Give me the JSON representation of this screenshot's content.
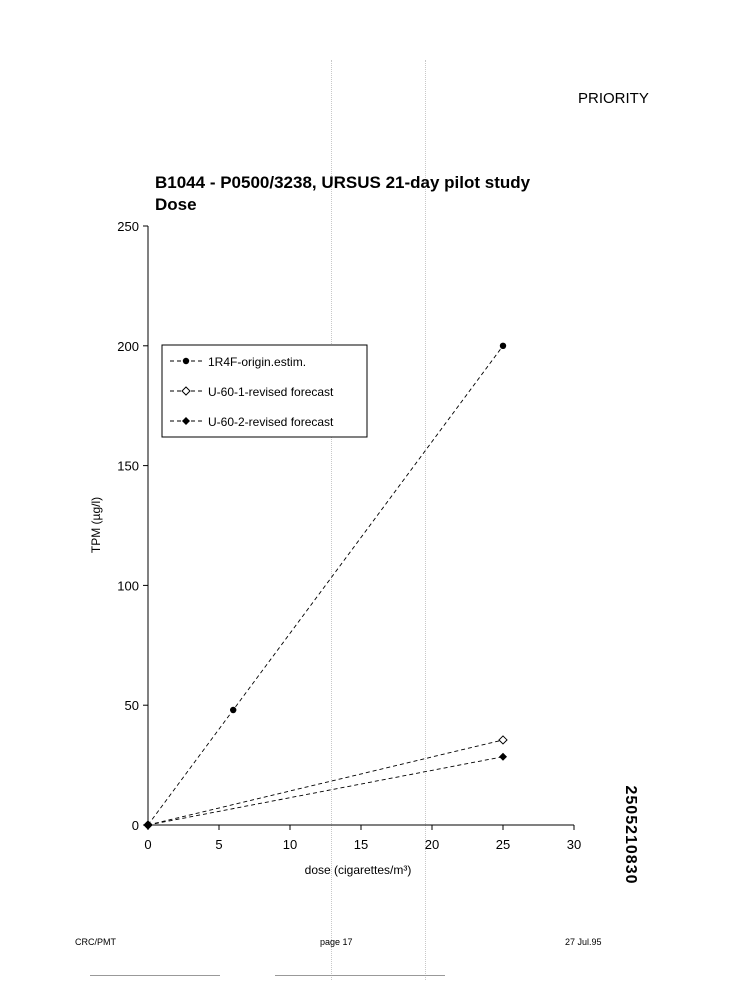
{
  "header": {
    "priority": "PRIORITY"
  },
  "footer": {
    "left": "CRC/PMT",
    "center": "page 17",
    "right": "27 Jul.95"
  },
  "side_label": "2505210830",
  "chart_data": {
    "type": "line",
    "title": "B1044 - P0500/3238, URSUS 21-day pilot study",
    "subtitle": "Dose",
    "xlabel": "dose (cigarettes/m³)",
    "ylabel": "TPM (µg/l)",
    "xlim": [
      0,
      30
    ],
    "ylim": [
      0,
      250
    ],
    "xticks": [
      0,
      5,
      10,
      15,
      20,
      25,
      30
    ],
    "yticks": [
      0,
      50,
      100,
      150,
      200,
      250
    ],
    "grid": false,
    "legend": "upper-left",
    "series": [
      {
        "name": "1R4F-origin.estim.",
        "marker": "filled-circle",
        "x": [
          0,
          6,
          25
        ],
        "y": [
          0,
          48,
          200
        ]
      },
      {
        "name": "U-60-1-revised forecast",
        "marker": "open-diamond",
        "x": [
          0,
          25
        ],
        "y": [
          0,
          35.5
        ]
      },
      {
        "name": "U-60-2-revised forecast",
        "marker": "filled-diamond",
        "x": [
          0,
          25
        ],
        "y": [
          0,
          28.5
        ]
      }
    ]
  }
}
